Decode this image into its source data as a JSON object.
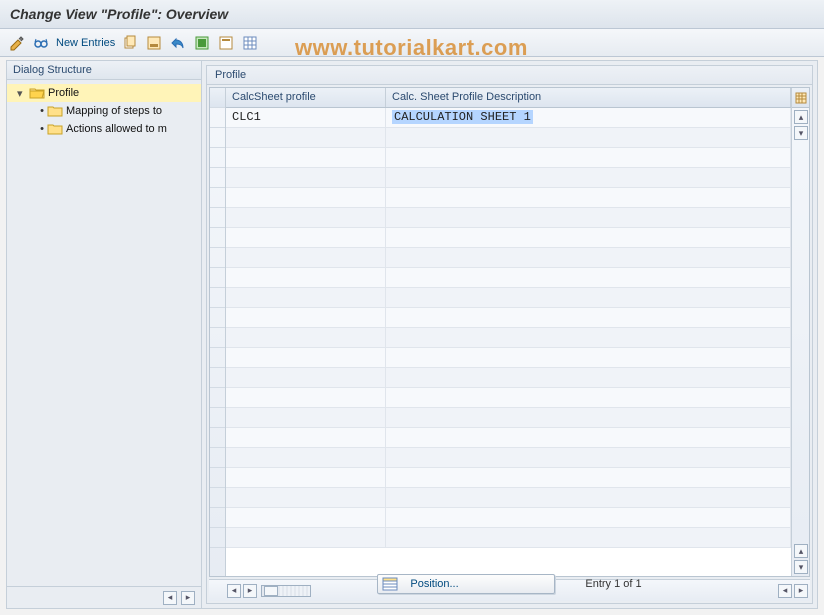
{
  "title": "Change View \"Profile\": Overview",
  "watermark": "www.tutorialkart.com",
  "toolbar": {
    "new_entries": "New Entries"
  },
  "sidebar": {
    "header": "Dialog Structure",
    "root": "Profile",
    "items": [
      "Mapping of steps to",
      "Actions allowed to m"
    ]
  },
  "panel": {
    "title": "Profile",
    "columns": [
      "CalcSheet profile",
      "Calc. Sheet Profile Description"
    ]
  },
  "rows": [
    {
      "profile": "CLC1",
      "description": "CALCULATION SHEET 1",
      "selected": true
    }
  ],
  "empty_row_count": 21,
  "footer": {
    "position_btn": "Position...",
    "entry_text": "Entry 1 of 1"
  },
  "colors": {
    "accent": "#004a7f",
    "highlight_bg": "#fff4b8",
    "sel_bg": "#b5d5ff",
    "watermark": "#d88a2c"
  }
}
